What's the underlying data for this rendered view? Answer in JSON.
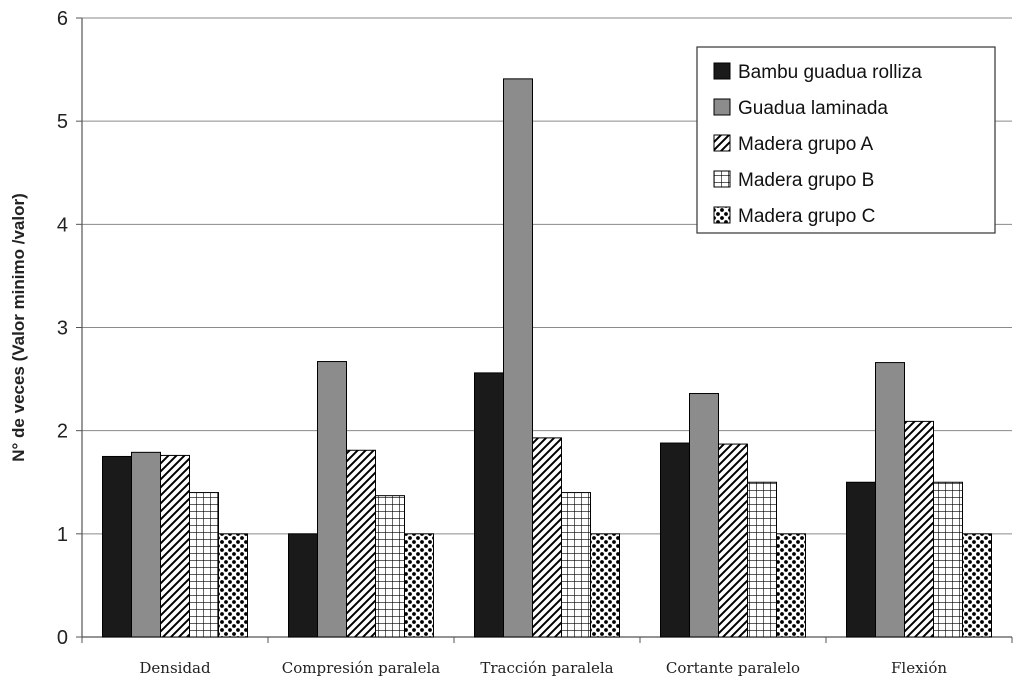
{
  "chart_data": {
    "type": "bar",
    "title": "",
    "xlabel": "",
    "ylabel": "N° de veces (Valor minimo /valor)",
    "ylim": [
      0,
      6
    ],
    "yticks": [
      0,
      1,
      2,
      3,
      4,
      5,
      6
    ],
    "grid": true,
    "legend_position": "top-right",
    "categories": [
      "Densidad",
      "Compresión paralela",
      "Tracción paralela",
      "Cortante paralelo",
      "Flexión"
    ],
    "series": [
      {
        "name": "Bambu guadua rolliza",
        "pattern": "solid-black",
        "color": "#1a1a1a",
        "values": [
          1.75,
          1.0,
          2.56,
          1.88,
          1.5
        ]
      },
      {
        "name": "Guadua laminada",
        "pattern": "solid-gray",
        "color": "#8c8c8c",
        "values": [
          1.79,
          2.67,
          5.41,
          2.36,
          2.66
        ]
      },
      {
        "name": "Madera grupo A",
        "pattern": "diagonal-hatch",
        "color": "#000000",
        "values": [
          1.76,
          1.81,
          1.93,
          1.87,
          2.09
        ]
      },
      {
        "name": "Madera grupo B",
        "pattern": "grid",
        "color": "#000000",
        "values": [
          1.4,
          1.37,
          1.4,
          1.5,
          1.5
        ]
      },
      {
        "name": "Madera grupo C",
        "pattern": "checker-dots",
        "color": "#000000",
        "values": [
          1.0,
          1.0,
          1.0,
          1.0,
          1.0
        ]
      }
    ]
  }
}
